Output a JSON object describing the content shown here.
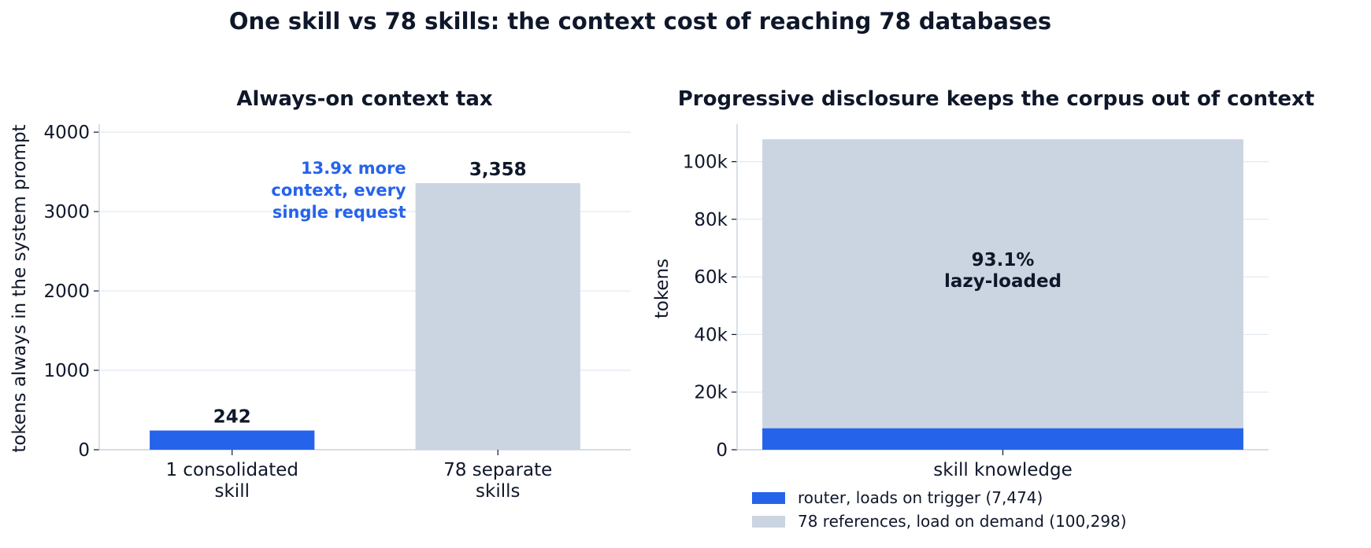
{
  "title": "One skill vs 78 skills: the context cost of reaching 78 databases",
  "colors": {
    "text": "#0f172a",
    "accent": "#2563eb",
    "muted": "#cbd5e1",
    "grid": "#e2e8f0",
    "spine": "#cbd5e1"
  },
  "chart_data": [
    {
      "type": "bar",
      "title": "Always-on context tax",
      "ylabel": "tokens always in the system prompt",
      "xlabel": "",
      "categories": [
        "1 consolidated\nskill",
        "78 separate\nskills"
      ],
      "values": [
        242,
        3358
      ],
      "value_labels": [
        "242",
        "3,358"
      ],
      "bar_colors": [
        "#2563eb",
        "#cbd5e1"
      ],
      "ylim": [
        0,
        4100
      ],
      "yticks": [
        0,
        1000,
        2000,
        3000,
        4000
      ],
      "ytick_labels": [
        "0",
        "1000",
        "2000",
        "3000",
        "4000"
      ],
      "grid": true,
      "annotation": {
        "text": "13.9x more\ncontext, every\nsingle request",
        "color": "#2563eb"
      }
    },
    {
      "type": "bar",
      "stacked": true,
      "title": "Progressive disclosure keeps the corpus out of context",
      "ylabel": "tokens",
      "xlabel": "",
      "categories": [
        "skill knowledge"
      ],
      "series": [
        {
          "name": "router, loads on trigger (7,474)",
          "values": [
            7474
          ],
          "color": "#2563eb"
        },
        {
          "name": "78 references, load on demand (100,298)",
          "values": [
            100298
          ],
          "color": "#cbd5e1"
        }
      ],
      "ylim": [
        0,
        113000
      ],
      "yticks": [
        0,
        20000,
        40000,
        60000,
        80000,
        100000
      ],
      "ytick_labels": [
        "0",
        "20k",
        "40k",
        "60k",
        "80k",
        "100k"
      ],
      "grid": true,
      "annotation": {
        "text": "93.1%\nlazy-loaded"
      },
      "legend_position": "bottom-left"
    }
  ]
}
